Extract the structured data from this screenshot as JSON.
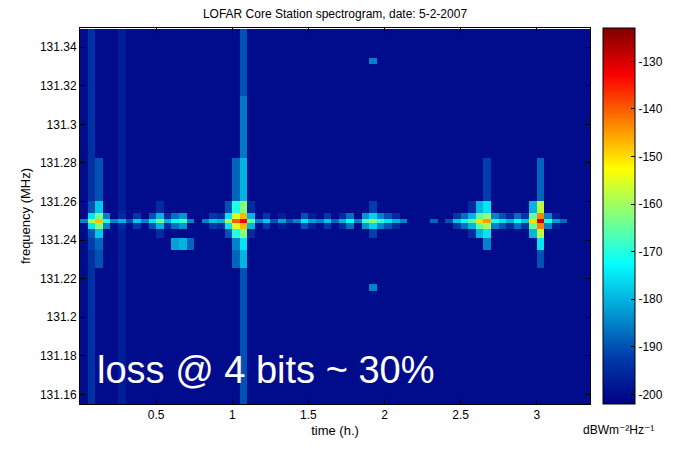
{
  "chart_data": {
    "type": "heatmap",
    "title": "LOFAR Core Station spectrogram, date: 5-2-2007",
    "x_label": "time (h.)",
    "y_label": "frequency (MHz)",
    "annotations": [
      "loss @ 4 bits ~ 30%"
    ],
    "color": "Jet",
    "grid": false,
    "xlim": [
      0,
      3.35
    ],
    "ylim": [
      131.155,
      131.35
    ],
    "xticks": [
      0.5,
      1,
      1.5,
      2,
      2.5,
      3
    ],
    "yticks": [
      131.16,
      131.18,
      131.2,
      131.22,
      131.24,
      131.26,
      131.28,
      131.3,
      131.32,
      131.34
    ],
    "colorbar": {
      "title": "dBWm⁻²Hz⁻¹",
      "range": [
        -202,
        -123
      ],
      "ticks": [
        -200,
        -190,
        -180,
        -170,
        -160,
        -150,
        -140,
        -130
      ]
    },
    "x": [
      0.025,
      0.075,
      0.125,
      0.175,
      0.225,
      0.275,
      0.325,
      0.375,
      0.425,
      0.475,
      0.525,
      0.575,
      0.625,
      0.675,
      0.725,
      0.775,
      0.825,
      0.875,
      0.925,
      0.975,
      1.025,
      1.075,
      1.125,
      1.175,
      1.225,
      1.275,
      1.325,
      1.375,
      1.425,
      1.475,
      1.525,
      1.575,
      1.625,
      1.675,
      1.725,
      1.775,
      1.825,
      1.875,
      1.925,
      1.975,
      2.025,
      2.075,
      2.125,
      2.175,
      2.225,
      2.275,
      2.325,
      2.375,
      2.425,
      2.475,
      2.525,
      2.575,
      2.625,
      2.675,
      2.725,
      2.775,
      2.825,
      2.875,
      2.925,
      2.975,
      3.025,
      3.075,
      3.125,
      3.175,
      3.225,
      3.275,
      3.325
    ],
    "y": [
      131.155,
      131.212,
      131.2155,
      131.219,
      131.232,
      131.238,
      131.244,
      131.248,
      131.25,
      131.252,
      131.256,
      131.265,
      131.3,
      131.33,
      131.333,
      131.336,
      131.345
    ],
    "z": [
      [
        -200,
        -194,
        -200,
        -200,
        -200,
        -197,
        -200,
        -200,
        -200,
        -200,
        -200,
        -200,
        -200,
        -200,
        -200,
        -200,
        -200,
        -200,
        -200,
        -200,
        -200,
        -190,
        -200,
        -200,
        -200,
        -200,
        -200,
        -200,
        -200,
        -200,
        -200,
        -200,
        -200,
        -200,
        -200,
        -200,
        -200,
        -200,
        -200,
        -200,
        -200,
        -200,
        -200,
        -200,
        -200,
        -200,
        -200,
        -200,
        -200,
        -200,
        -200,
        -200,
        -200,
        -200,
        -200,
        -200,
        -200,
        -200,
        -200,
        -200,
        -200,
        -200,
        -200,
        -200,
        -200,
        -200,
        -200
      ],
      [
        -200,
        -194,
        -200,
        -200,
        -200,
        -197,
        -200,
        -200,
        -200,
        -200,
        -200,
        -200,
        -200,
        -200,
        -200,
        -200,
        -200,
        -200,
        -200,
        -200,
        -200,
        -190,
        -200,
        -200,
        -200,
        -200,
        -200,
        -200,
        -200,
        -200,
        -200,
        -200,
        -200,
        -200,
        -200,
        -200,
        -200,
        -200,
        -200,
        -200,
        -200,
        -200,
        -200,
        -200,
        -200,
        -200,
        -200,
        -200,
        -200,
        -200,
        -200,
        -200,
        -200,
        -200,
        -200,
        -200,
        -200,
        -200,
        -200,
        -200,
        -200,
        -200,
        -200,
        -200,
        -200,
        -200,
        -200
      ],
      [
        -200,
        -194,
        -200,
        -200,
        -200,
        -197,
        -200,
        -200,
        -200,
        -200,
        -200,
        -200,
        -200,
        -200,
        -200,
        -200,
        -200,
        -200,
        -200,
        -200,
        -200,
        -190,
        -200,
        -200,
        -200,
        -200,
        -200,
        -200,
        -200,
        -200,
        -200,
        -200,
        -200,
        -200,
        -200,
        -200,
        -200,
        -200,
        -185,
        -200,
        -200,
        -200,
        -200,
        -200,
        -200,
        -200,
        -200,
        -200,
        -200,
        -200,
        -200,
        -200,
        -200,
        -200,
        -200,
        -200,
        -200,
        -200,
        -200,
        -200,
        -200,
        -200,
        -200,
        -200,
        -200,
        -200,
        -200
      ],
      [
        -200,
        -194,
        -200,
        -200,
        -200,
        -197,
        -200,
        -200,
        -200,
        -200,
        -200,
        -200,
        -200,
        -200,
        -200,
        -200,
        -200,
        -200,
        -200,
        -200,
        -200,
        -190,
        -200,
        -200,
        -200,
        -200,
        -200,
        -200,
        -200,
        -200,
        -200,
        -200,
        -200,
        -200,
        -200,
        -200,
        -200,
        -200,
        -200,
        -200,
        -200,
        -200,
        -200,
        -200,
        -200,
        -200,
        -200,
        -200,
        -200,
        -200,
        -200,
        -200,
        -200,
        -200,
        -200,
        -200,
        -200,
        -200,
        -200,
        -200,
        -200,
        -200,
        -200,
        -200,
        -200,
        -200,
        -200
      ],
      [
        -200,
        -194,
        -190,
        -200,
        -200,
        -197,
        -200,
        -200,
        -200,
        -200,
        -200,
        -200,
        -200,
        -200,
        -200,
        -200,
        -200,
        -200,
        -200,
        -200,
        -188,
        -180,
        -200,
        -200,
        -200,
        -200,
        -200,
        -200,
        -200,
        -200,
        -200,
        -200,
        -200,
        -200,
        -200,
        -200,
        -200,
        -200,
        -200,
        -200,
        -200,
        -200,
        -200,
        -200,
        -200,
        -200,
        -200,
        -200,
        -200,
        -200,
        -200,
        -200,
        -200,
        -200,
        -200,
        -200,
        -200,
        -200,
        -200,
        -200,
        -190,
        -200,
        -200,
        -200,
        -200,
        -200,
        -200
      ],
      [
        -200,
        -192,
        -188,
        -200,
        -200,
        -197,
        -200,
        -200,
        -200,
        -200,
        -200,
        -200,
        -182,
        -180,
        -188,
        -200,
        -200,
        -200,
        -200,
        -200,
        -185,
        -175,
        -200,
        -200,
        -200,
        -200,
        -200,
        -200,
        -200,
        -200,
        -200,
        -200,
        -200,
        -200,
        -200,
        -200,
        -200,
        -200,
        -200,
        -200,
        -200,
        -200,
        -200,
        -200,
        -200,
        -200,
        -200,
        -200,
        -200,
        -200,
        -200,
        -200,
        -200,
        -185,
        -200,
        -200,
        -200,
        -200,
        -200,
        -200,
        -175,
        -200,
        -200,
        -200,
        -200,
        -200,
        -200
      ],
      [
        -200,
        -190,
        -178,
        -200,
        -200,
        -197,
        -200,
        -200,
        -200,
        -200,
        -195,
        -200,
        -200,
        -200,
        -200,
        -200,
        -200,
        -200,
        -200,
        -190,
        -170,
        -162,
        -195,
        -200,
        -200,
        -200,
        -200,
        -200,
        -200,
        -200,
        -200,
        -200,
        -200,
        -200,
        -200,
        -200,
        -200,
        -200,
        -192,
        -200,
        -200,
        -200,
        -200,
        -200,
        -200,
        -200,
        -200,
        -200,
        -200,
        -200,
        -200,
        -195,
        -180,
        -175,
        -200,
        -200,
        -200,
        -200,
        -200,
        -180,
        -158,
        -200,
        -200,
        -200,
        -200,
        -200,
        -200
      ],
      [
        -200,
        -175,
        -163,
        -185,
        -200,
        -195,
        -200,
        -193,
        -200,
        -190,
        -180,
        -195,
        -187,
        -183,
        -200,
        -200,
        -200,
        -193,
        -195,
        -175,
        -155,
        -147,
        -180,
        -200,
        -193,
        -200,
        -197,
        -200,
        -200,
        -190,
        -197,
        -200,
        -193,
        -200,
        -195,
        -187,
        -200,
        -183,
        -177,
        -185,
        -190,
        -195,
        -200,
        -200,
        -200,
        -200,
        -200,
        -200,
        -200,
        -193,
        -187,
        -180,
        -165,
        -160,
        -185,
        -190,
        -195,
        -187,
        -193,
        -165,
        -143,
        -185,
        -197,
        -200,
        -200,
        -200,
        -200
      ],
      [
        -185,
        -160,
        -148,
        -170,
        -185,
        -180,
        -190,
        -178,
        -185,
        -175,
        -165,
        -180,
        -172,
        -168,
        -185,
        -200,
        -185,
        -178,
        -180,
        -160,
        -140,
        -132,
        -165,
        -185,
        -178,
        -190,
        -182,
        -190,
        -185,
        -175,
        -182,
        -185,
        -178,
        -188,
        -180,
        -172,
        -185,
        -168,
        -162,
        -170,
        -175,
        -180,
        -185,
        -200,
        -200,
        -200,
        -188,
        -200,
        -190,
        -178,
        -172,
        -165,
        -150,
        -145,
        -170,
        -175,
        -180,
        -172,
        -178,
        -150,
        -128,
        -170,
        -182,
        -188,
        -200,
        -200,
        -200
      ],
      [
        -200,
        -175,
        -163,
        -185,
        -200,
        -195,
        -200,
        -193,
        -200,
        -190,
        -180,
        -195,
        -187,
        -183,
        -200,
        -200,
        -200,
        -193,
        -195,
        -175,
        -155,
        -147,
        -180,
        -200,
        -193,
        -200,
        -197,
        -200,
        -200,
        -190,
        -197,
        -200,
        -193,
        -200,
        -195,
        -187,
        -200,
        -183,
        -177,
        -185,
        -190,
        -195,
        -200,
        -200,
        -200,
        -200,
        -200,
        -200,
        -200,
        -193,
        -187,
        -180,
        -165,
        -160,
        -185,
        -190,
        -195,
        -187,
        -193,
        -165,
        -143,
        -185,
        -197,
        -200,
        -200,
        -200,
        -200
      ],
      [
        -200,
        -190,
        -178,
        -200,
        -200,
        -197,
        -200,
        -200,
        -200,
        -200,
        -195,
        -200,
        -200,
        -200,
        -200,
        -200,
        -200,
        -200,
        -200,
        -190,
        -170,
        -162,
        -195,
        -200,
        -200,
        -200,
        -200,
        -200,
        -200,
        -200,
        -200,
        -200,
        -200,
        -200,
        -200,
        -200,
        -200,
        -200,
        -192,
        -200,
        -200,
        -200,
        -200,
        -200,
        -200,
        -200,
        -200,
        -200,
        -200,
        -200,
        -200,
        -195,
        -180,
        -175,
        -200,
        -200,
        -200,
        -200,
        -200,
        -180,
        -158,
        -200,
        -200,
        -200,
        -200,
        -200,
        -200
      ],
      [
        -200,
        -194,
        -190,
        -200,
        -200,
        -197,
        -200,
        -200,
        -200,
        -200,
        -200,
        -200,
        -200,
        -200,
        -200,
        -200,
        -200,
        -200,
        -200,
        -200,
        -188,
        -180,
        -200,
        -200,
        -200,
        -200,
        -200,
        -200,
        -200,
        -200,
        -200,
        -200,
        -200,
        -200,
        -200,
        -200,
        -200,
        -200,
        -200,
        -200,
        -200,
        -200,
        -200,
        -200,
        -200,
        -200,
        -200,
        -200,
        -200,
        -200,
        -200,
        -200,
        -200,
        -192,
        -200,
        -200,
        -200,
        -200,
        -200,
        -200,
        -188,
        -200,
        -200,
        -200,
        -200,
        -200,
        -200
      ],
      [
        -200,
        -194,
        -200,
        -200,
        -200,
        -197,
        -200,
        -200,
        -200,
        -200,
        -200,
        -200,
        -200,
        -200,
        -200,
        -200,
        -200,
        -200,
        -200,
        -200,
        -200,
        -186,
        -200,
        -200,
        -200,
        -200,
        -200,
        -200,
        -200,
        -200,
        -200,
        -200,
        -200,
        -200,
        -200,
        -200,
        -200,
        -200,
        -200,
        -200,
        -200,
        -200,
        -200,
        -200,
        -200,
        -200,
        -200,
        -200,
        -200,
        -200,
        -200,
        -200,
        -200,
        -200,
        -200,
        -200,
        -200,
        -200,
        -200,
        -200,
        -200,
        -200,
        -200,
        -200,
        -200,
        -200,
        -200
      ],
      [
        -200,
        -194,
        -200,
        -200,
        -200,
        -197,
        -200,
        -200,
        -200,
        -200,
        -200,
        -200,
        -200,
        -200,
        -200,
        -200,
        -200,
        -200,
        -200,
        -200,
        -200,
        -190,
        -200,
        -200,
        -200,
        -200,
        -200,
        -200,
        -200,
        -200,
        -200,
        -200,
        -200,
        -200,
        -200,
        -200,
        -200,
        -200,
        -200,
        -200,
        -200,
        -200,
        -200,
        -200,
        -200,
        -200,
        -200,
        -200,
        -200,
        -200,
        -200,
        -200,
        -200,
        -200,
        -200,
        -200,
        -200,
        -200,
        -200,
        -200,
        -200,
        -200,
        -200,
        -200,
        -200,
        -200,
        -200
      ],
      [
        -200,
        -194,
        -200,
        -200,
        -200,
        -197,
        -200,
        -200,
        -200,
        -200,
        -200,
        -200,
        -200,
        -200,
        -200,
        -200,
        -200,
        -200,
        -200,
        -200,
        -200,
        -190,
        -200,
        -200,
        -200,
        -200,
        -200,
        -200,
        -200,
        -200,
        -200,
        -200,
        -200,
        -200,
        -200,
        -200,
        -200,
        -200,
        -185,
        -200,
        -200,
        -200,
        -200,
        -200,
        -200,
        -200,
        -200,
        -200,
        -200,
        -200,
        -200,
        -200,
        -200,
        -200,
        -200,
        -200,
        -200,
        -200,
        -200,
        -200,
        -200,
        -200,
        -200,
        -200,
        -200,
        -200,
        -200
      ],
      [
        -200,
        -194,
        -200,
        -200,
        -200,
        -197,
        -200,
        -200,
        -200,
        -200,
        -200,
        -200,
        -200,
        -200,
        -200,
        -200,
        -200,
        -200,
        -200,
        -200,
        -200,
        -190,
        -200,
        -200,
        -200,
        -200,
        -200,
        -200,
        -200,
        -200,
        -200,
        -200,
        -200,
        -200,
        -200,
        -200,
        -200,
        -200,
        -200,
        -200,
        -200,
        -200,
        -200,
        -200,
        -200,
        -200,
        -200,
        -200,
        -200,
        -200,
        -200,
        -200,
        -200,
        -200,
        -200,
        -200,
        -200,
        -200,
        -200,
        -200,
        -200,
        -200,
        -200,
        -200,
        -200,
        -200,
        -200
      ],
      [
        -200,
        -194,
        -200,
        -200,
        -200,
        -197,
        -200,
        -200,
        -200,
        -200,
        -200,
        -200,
        -200,
        -200,
        -200,
        -200,
        -200,
        -200,
        -200,
        -200,
        -200,
        -190,
        -200,
        -200,
        -200,
        -200,
        -200,
        -200,
        -200,
        -200,
        -200,
        -200,
        -200,
        -200,
        -200,
        -200,
        -200,
        -200,
        -200,
        -200,
        -200,
        -200,
        -200,
        -200,
        -200,
        -200,
        -200,
        -200,
        -200,
        -200,
        -200,
        -200,
        -200,
        -200,
        -200,
        -200,
        -200,
        -200,
        -200,
        -200,
        -200,
        -200,
        -200,
        -200,
        -200,
        -200,
        -200
      ]
    ]
  }
}
